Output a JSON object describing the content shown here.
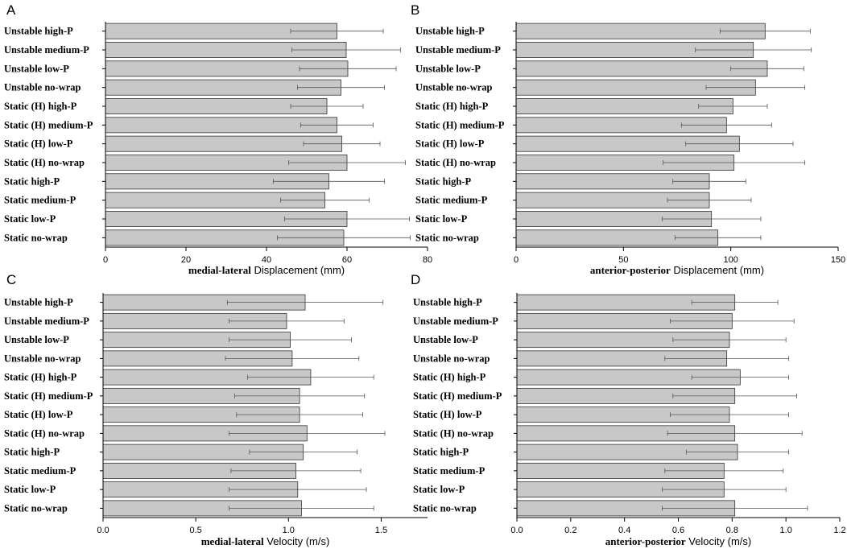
{
  "chart_data": [
    {
      "panel": "A",
      "type": "bar",
      "orientation": "horizontal",
      "categories": [
        "Unstable high-P",
        "Unstable medium-P",
        "Unstable low-P",
        "Unstable no-wrap",
        "Static (H) high-P",
        "Static (H) medium-P",
        "Static (H) low-P",
        "Static (H) no-wrap",
        "Static high-P",
        "Static medium-P",
        "Static low-P",
        "Static no-wrap"
      ],
      "values": [
        57.5,
        59.8,
        60.2,
        58.5,
        55.0,
        57.5,
        58.7,
        60.0,
        55.5,
        54.5,
        60.0,
        59.2
      ],
      "errors": [
        11.5,
        13.5,
        12.0,
        10.8,
        9.0,
        9.0,
        9.5,
        14.5,
        13.8,
        11.0,
        15.5,
        16.5
      ],
      "xlim": [
        0,
        80
      ],
      "xticks": [
        0,
        20,
        40,
        60,
        80
      ],
      "xtick_labels": [
        "0",
        "20",
        "40",
        "60",
        "80"
      ],
      "xlabel_bold": "medial-lateral",
      "xlabel_rest": "Displacement (mm)"
    },
    {
      "panel": "B",
      "type": "bar",
      "orientation": "horizontal",
      "categories": [
        "Unstable high-P",
        "Unstable medium-P",
        "Unstable low-P",
        "Unstable no-wrap",
        "Static (H) high-P",
        "Static (H) medium-P",
        "Static (H) low-P",
        "Static (H) no-wrap",
        "Static high-P",
        "Static medium-P",
        "Static low-P",
        "Static no-wrap"
      ],
      "values": [
        116.0,
        110.5,
        117.0,
        111.5,
        101.0,
        98.0,
        104.0,
        101.5,
        90.0,
        90.0,
        91.0,
        94.0
      ],
      "errors": [
        21.0,
        27.0,
        17.0,
        23.0,
        16.0,
        21.0,
        25.0,
        33.0,
        17.0,
        19.5,
        23.0,
        20.0
      ],
      "xlim": [
        0,
        150
      ],
      "xticks": [
        0,
        50,
        100,
        150
      ],
      "xtick_labels": [
        "0",
        "50",
        "100",
        "150"
      ],
      "xlabel_bold": "anterior-posterior",
      "xlabel_rest": "Displacement (mm)"
    },
    {
      "panel": "C",
      "type": "bar",
      "orientation": "horizontal",
      "categories": [
        "Unstable high-P",
        "Unstable medium-P",
        "Unstable low-P",
        "Unstable no-wrap",
        "Static (H) high-P",
        "Static (H) medium-P",
        "Static (H) low-P",
        "Static (H) no-wrap",
        "Static high-P",
        "Static medium-P",
        "Static low-P",
        "Static no-wrap"
      ],
      "values": [
        1.09,
        0.99,
        1.01,
        1.02,
        1.12,
        1.06,
        1.06,
        1.1,
        1.08,
        1.04,
        1.05,
        1.07
      ],
      "errors": [
        0.42,
        0.31,
        0.33,
        0.36,
        0.34,
        0.35,
        0.34,
        0.42,
        0.29,
        0.35,
        0.37,
        0.39
      ],
      "xlim": [
        0,
        1.75
      ],
      "xticks": [
        0,
        0.5,
        1.0,
        1.5
      ],
      "xtick_labels": [
        "0.0",
        "0.5",
        "1.0",
        "1.5"
      ],
      "xlabel_bold": "medial-lateral",
      "xlabel_rest": "Velocity (m/s)"
    },
    {
      "panel": "D",
      "type": "bar",
      "orientation": "horizontal",
      "categories": [
        "Unstable high-P",
        "Unstable medium-P",
        "Unstable low-P",
        "Unstable no-wrap",
        "Static (H) high-P",
        "Static (H) medium-P",
        "Static (H) low-P",
        "Static (H) no-wrap",
        "Static high-P",
        "Static medium-P",
        "Static low-P",
        "Static no-wrap"
      ],
      "values": [
        0.81,
        0.8,
        0.79,
        0.78,
        0.83,
        0.81,
        0.79,
        0.81,
        0.82,
        0.77,
        0.77,
        0.81
      ],
      "errors": [
        0.16,
        0.23,
        0.21,
        0.23,
        0.18,
        0.23,
        0.22,
        0.25,
        0.19,
        0.22,
        0.23,
        0.27
      ],
      "xlim": [
        0,
        1.2
      ],
      "xticks": [
        0,
        0.2,
        0.4,
        0.6,
        0.8,
        1.0,
        1.2
      ],
      "xtick_labels": [
        "0.0",
        "0.2",
        "0.4",
        "0.6",
        "0.8",
        "1.0",
        "1.2"
      ],
      "xlabel_bold": "anterior-posterior",
      "xlabel_rest": "Velocity (m/s)"
    }
  ]
}
